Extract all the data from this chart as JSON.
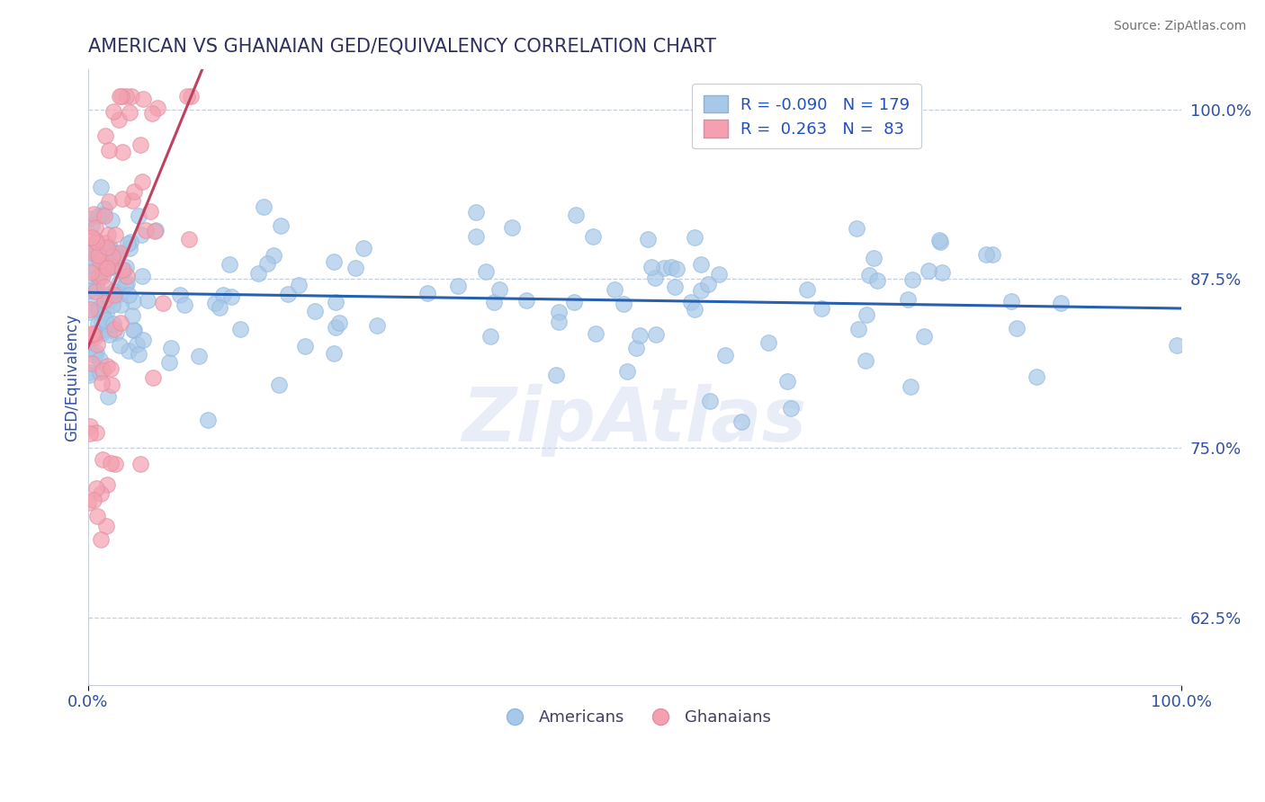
{
  "title": "AMERICAN VS GHANAIAN GED/EQUIVALENCY CORRELATION CHART",
  "source": "Source: ZipAtlas.com",
  "ylabel": "GED/Equivalency",
  "watermark": "ZipAtlas",
  "xlim": [
    0.0,
    1.0
  ],
  "ylim": [
    0.575,
    1.03
  ],
  "yticks": [
    0.625,
    0.75,
    0.875,
    1.0
  ],
  "ytick_labels": [
    "62.5%",
    "75.0%",
    "87.5%",
    "100.0%"
  ],
  "xtick_labels": [
    "0.0%",
    "100.0%"
  ],
  "blue_R": -0.09,
  "blue_N": 179,
  "pink_R": 0.263,
  "pink_N": 83,
  "blue_color": "#a8c8e8",
  "pink_color": "#f4a0b0",
  "trendline_blue_color": "#2860b0",
  "trendline_pink_color": "#c04060",
  "grid_color": "#b8c4d8",
  "title_color": "#303060",
  "axis_color": "#3050a0",
  "source_color": "#707070",
  "background_color": "#ffffff",
  "legend_label_color": "#2050c0"
}
